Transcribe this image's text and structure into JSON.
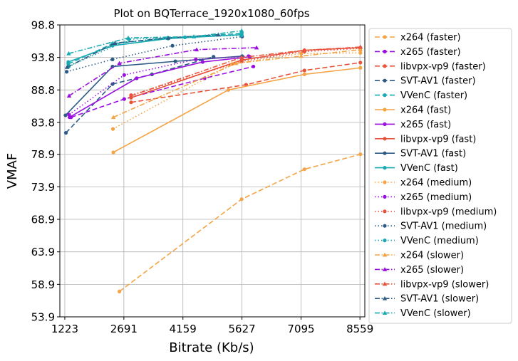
{
  "chart_data": {
    "type": "line",
    "title": "Plot on BQTerrace_1920x1080_60fps",
    "xlabel": "Bitrate (Kb/s)",
    "ylabel": "VMAF",
    "xlim": [
      1100,
      8680
    ],
    "ylim": [
      53.9,
      98.8
    ],
    "xticks": [
      1223,
      2691,
      4159,
      5627,
      7095,
      8559
    ],
    "yticks": [
      53.9,
      58.9,
      63.9,
      68.9,
      73.9,
      78.9,
      83.8,
      88.8,
      93.8,
      98.8
    ],
    "grid": true,
    "legend_position": "outside-right",
    "colors": {
      "x264": "#f4a445",
      "x265": "#9a0fdf",
      "libvpx-vp9": "#e8533c",
      "SVT-AV1": "#2e5b86",
      "VVenC": "#18aab0"
    },
    "series": [
      {
        "name": "x264 (faster)",
        "codec": "x264",
        "preset": "faster",
        "x": [
          2580,
          5620,
          7180,
          8570
        ],
        "y": [
          57.8,
          72.0,
          76.6,
          78.9
        ]
      },
      {
        "name": "x265 (faster)",
        "codec": "x265",
        "preset": "faster",
        "x": [
          1380,
          2700,
          4700,
          5910
        ],
        "y": [
          84.6,
          87.4,
          90.6,
          92.4
        ]
      },
      {
        "name": "libvpx-vp9 (faster)",
        "codec": "libvpx-vp9",
        "preset": "faster",
        "x": [
          2870,
          5730,
          7180,
          8570
        ],
        "y": [
          86.9,
          89.6,
          91.8,
          93.0
        ]
      },
      {
        "name": "SVT-AV1 (faster)",
        "codec": "SVT-AV1",
        "preset": "faster",
        "x": [
          1250,
          2410,
          3390,
          4920
        ],
        "y": [
          82.2,
          89.7,
          91.2,
          93.9
        ]
      },
      {
        "name": "VVenC (faster)",
        "codec": "VVenC",
        "preset": "faster",
        "x": [
          1310,
          2410,
          3790,
          5620
        ],
        "y": [
          92.8,
          95.9,
          96.8,
          97.5
        ]
      },
      {
        "name": "x264 (fast)",
        "codec": "x264",
        "preset": "fast",
        "x": [
          2430,
          5290,
          7180,
          8570
        ],
        "y": [
          79.2,
          88.8,
          91.2,
          92.2
        ]
      },
      {
        "name": "x265 (fast)",
        "codec": "x265",
        "preset": "fast",
        "x": [
          1340,
          3010,
          4650,
          5820
        ],
        "y": [
          84.6,
          90.6,
          93.1,
          93.9
        ]
      },
      {
        "name": "libvpx-vp9 (fast)",
        "codec": "libvpx-vp9",
        "preset": "fast",
        "x": [
          2870,
          5620,
          7180,
          8570
        ],
        "y": [
          87.6,
          93.4,
          94.9,
          95.3
        ]
      },
      {
        "name": "SVT-AV1 (fast)",
        "codec": "SVT-AV1",
        "preset": "fast",
        "x": [
          1240,
          2410,
          3970,
          5630
        ],
        "y": [
          84.9,
          92.4,
          93.2,
          94.0
        ]
      },
      {
        "name": "VVenC (fast)",
        "codec": "VVenC",
        "preset": "fast",
        "x": [
          1310,
          2410,
          3790,
          5620
        ],
        "y": [
          93.1,
          95.6,
          96.7,
          97.3
        ]
      },
      {
        "name": "x264 (medium)",
        "codec": "x264",
        "preset": "medium",
        "x": [
          2420,
          5390,
          7100,
          8570
        ],
        "y": [
          82.8,
          92.8,
          94.4,
          94.5
        ]
      },
      {
        "name": "x265 (medium)",
        "codec": "x265",
        "preset": "medium",
        "x": [
          1330,
          2700,
          4480,
          5790
        ],
        "y": [
          85.0,
          91.1,
          93.5,
          94.0
        ]
      },
      {
        "name": "libvpx-vp9 (medium)",
        "codec": "libvpx-vp9",
        "preset": "medium",
        "x": [
          2870,
          5620,
          7180,
          8570
        ],
        "y": [
          88.0,
          93.2,
          94.7,
          95.2
        ]
      },
      {
        "name": "SVT-AV1 (medium)",
        "codec": "SVT-AV1",
        "preset": "medium",
        "x": [
          1270,
          2410,
          3900,
          5630
        ],
        "y": [
          91.6,
          93.5,
          95.6,
          97.0
        ]
      },
      {
        "name": "VVenC (medium)",
        "codec": "VVenC",
        "preset": "medium",
        "x": [
          1320,
          2820,
          4210,
          5620
        ],
        "y": [
          92.4,
          96.6,
          96.9,
          97.2
        ]
      },
      {
        "name": "x264 (slower)",
        "codec": "x264",
        "preset": "slower",
        "x": [
          2430,
          5480,
          7100,
          8570
        ],
        "y": [
          84.6,
          92.9,
          94.0,
          95.0
        ]
      },
      {
        "name": "x265 (slower)",
        "codec": "x265",
        "preset": "slower",
        "x": [
          1330,
          2580,
          4500,
          5990
        ],
        "y": [
          87.9,
          92.9,
          95.0,
          95.3
        ]
      },
      {
        "name": "libvpx-vp9 (slower)",
        "codec": "libvpx-vp9",
        "preset": "slower",
        "x": [
          2870,
          5620,
          7180,
          8570
        ],
        "y": [
          87.9,
          93.8,
          94.9,
          95.4
        ]
      },
      {
        "name": "SVT-AV1 (slower)",
        "codec": "SVT-AV1",
        "preset": "slower",
        "x": [
          1280,
          2470,
          3790,
          5040
        ],
        "y": [
          92.3,
          96.0,
          96.8,
          97.3
        ]
      },
      {
        "name": "VVenC (slower)",
        "codec": "VVenC",
        "preset": "slower",
        "x": [
          1320,
          2800,
          4430,
          5620
        ],
        "y": [
          94.4,
          96.8,
          97.0,
          97.9
        ]
      }
    ]
  }
}
